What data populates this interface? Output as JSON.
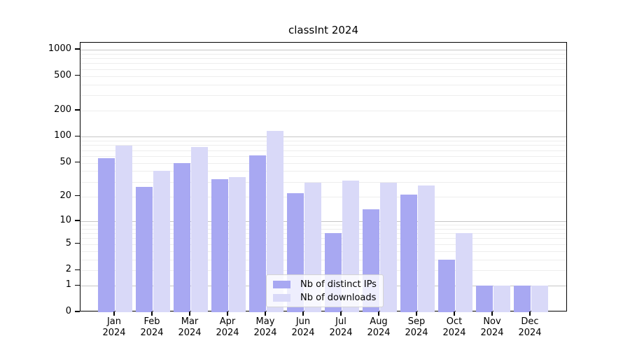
{
  "chart_data": {
    "type": "bar",
    "title": "classInt 2024",
    "categories": [
      "Jan",
      "Feb",
      "Mar",
      "Apr",
      "May",
      "Jun",
      "Jul",
      "Aug",
      "Sep",
      "Oct",
      "Nov",
      "Dec"
    ],
    "x_sublabel": "2024",
    "series": [
      {
        "name": "Nb of distinct IPs",
        "color": "#a8a8f2",
        "values": [
          57,
          26,
          50,
          32,
          61,
          22,
          7,
          14,
          21,
          3,
          1,
          1
        ]
      },
      {
        "name": "Nb of downloads",
        "color": "#d9d9f8",
        "values": [
          79,
          40,
          76,
          34,
          117,
          29,
          31,
          29,
          27,
          7,
          1,
          1
        ]
      }
    ],
    "yscale": "log10(value+1)",
    "ylim": [
      0,
      1100
    ],
    "ytick_labels": [
      0,
      1,
      2,
      5,
      10,
      20,
      50,
      100,
      200,
      500,
      1000
    ],
    "major_gridlines": [
      1,
      10,
      100,
      1000
    ],
    "minor_gridlines": [
      2,
      3,
      4,
      5,
      6,
      7,
      8,
      9,
      20,
      30,
      40,
      50,
      60,
      70,
      80,
      90,
      200,
      300,
      400,
      500,
      600,
      700,
      800,
      900
    ],
    "grid": true,
    "xlabel": "",
    "ylabel": "",
    "legend": {
      "position": "bottom-center",
      "entries": [
        "Nb of distinct IPs",
        "Nb of downloads"
      ]
    }
  },
  "colors": {
    "bar_distinct_ips": "#a8a8f2",
    "bar_downloads": "#d9d9f8",
    "major_grid": "#c6c6c6",
    "minor_grid": "#ededed",
    "axis": "#000000",
    "background": "#ffffff"
  }
}
